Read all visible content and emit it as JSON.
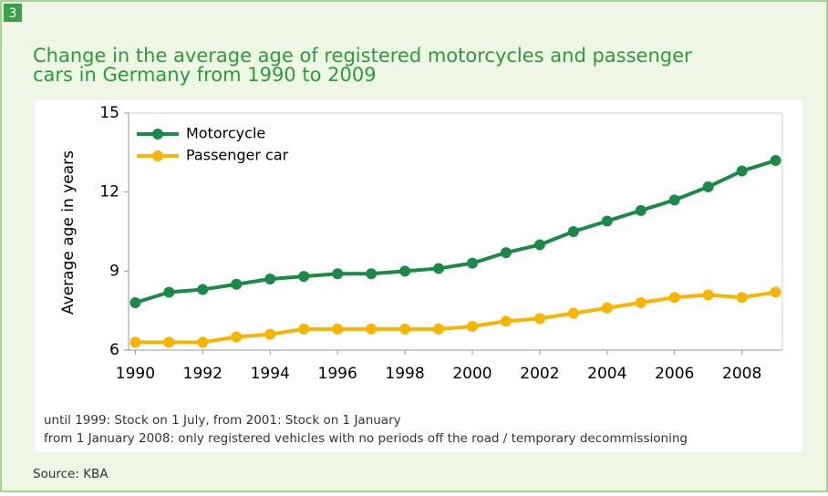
{
  "badge": "3",
  "chart_data": {
    "type": "line",
    "title": "Change in the average age of registered motorcycles and passenger cars in Germany from 1990 to 2009",
    "ylabel": "Average age in years",
    "x": [
      1990,
      1991,
      1992,
      1993,
      1994,
      1995,
      1996,
      1997,
      1998,
      1999,
      2000,
      2001,
      2002,
      2003,
      2004,
      2005,
      2006,
      2007,
      2008,
      2009
    ],
    "series": [
      {
        "name": "Motorcycle",
        "color": "#1b8a47",
        "values": [
          7.8,
          8.2,
          8.3,
          8.5,
          8.7,
          8.8,
          8.9,
          8.9,
          9.0,
          9.1,
          9.3,
          9.7,
          10.0,
          10.5,
          10.9,
          11.3,
          11.7,
          12.2,
          12.8,
          13.2
        ]
      },
      {
        "name": "Passenger car",
        "color": "#f7b400",
        "values": [
          6.3,
          6.3,
          6.3,
          6.5,
          6.6,
          6.8,
          6.8,
          6.8,
          6.8,
          6.8,
          6.9,
          7.1,
          7.2,
          7.4,
          7.6,
          7.8,
          8.0,
          8.1,
          8.0,
          8.2
        ]
      }
    ],
    "xlim": [
      1989.8,
      2009.2
    ],
    "xticks": [
      1990,
      1992,
      1994,
      1996,
      1998,
      2000,
      2002,
      2004,
      2006,
      2008
    ],
    "ylim": [
      6,
      15
    ],
    "yticks": [
      6,
      9,
      12,
      15
    ],
    "grid": false,
    "legend": "top-left",
    "notes": [
      "until 1999: Stock on 1 July, from 2001: Stock on 1 January",
      "from 1 January 2008: only registered vehicles with no periods off the road / temporary decommissioning"
    ],
    "source": "Source: KBA"
  }
}
